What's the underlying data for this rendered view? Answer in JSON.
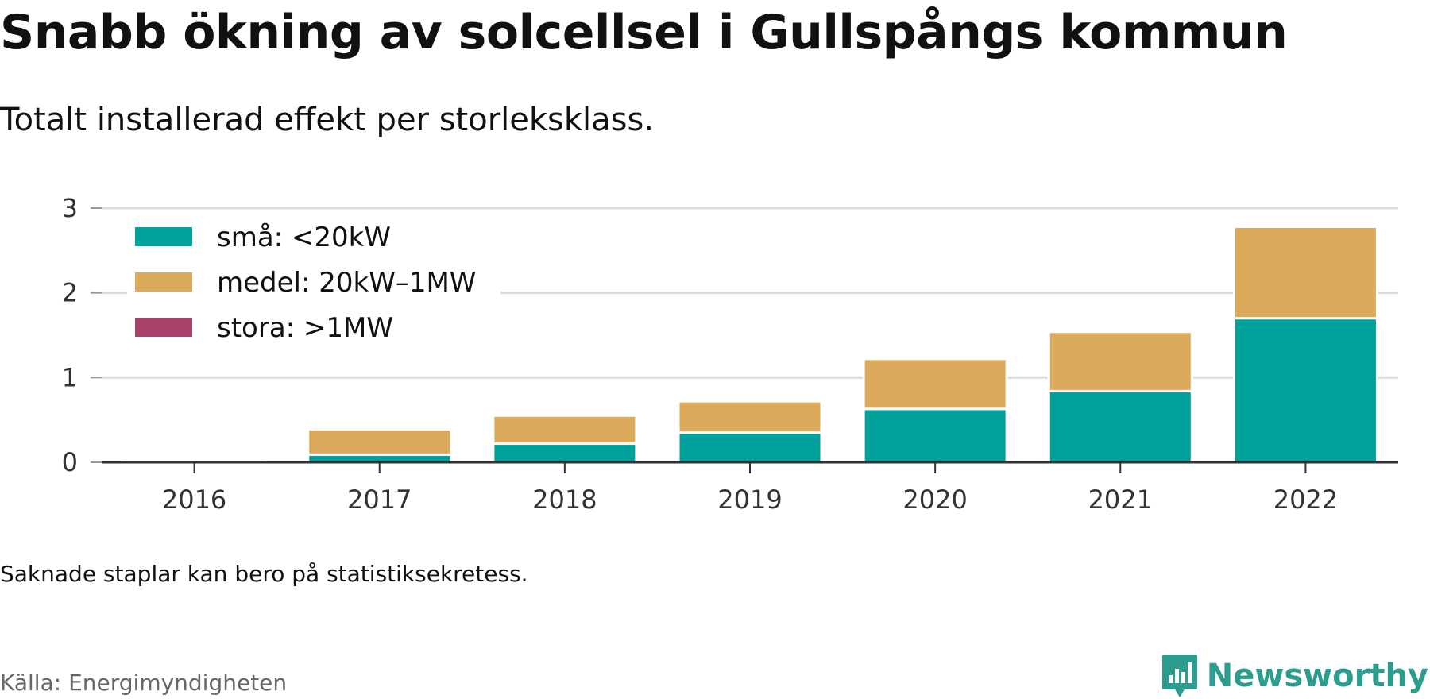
{
  "title": "Snabb ökning av solcellsel i Gullspångs kommun",
  "subtitle": "Totalt installerad effekt per storleksklass.",
  "note": "Saknade staplar kan bero på statistiksekretess.",
  "source": "Källa: Energimyndigheten",
  "brand": {
    "name": "Newsworthy",
    "icon": "newsworthy-logo-icon",
    "color": "#2c9c8f"
  },
  "chart_data": {
    "type": "bar",
    "stacked": true,
    "categories": [
      "2016",
      "2017",
      "2018",
      "2019",
      "2020",
      "2021",
      "2022"
    ],
    "series": [
      {
        "name": "små: <20kW",
        "color": "#00a19a",
        "values": [
          0.0,
          0.09,
          0.22,
          0.35,
          0.63,
          0.84,
          1.7
        ]
      },
      {
        "name": "medel: 20kW–1MW",
        "color": "#dbab5b",
        "values": [
          0.03,
          0.3,
          0.33,
          0.37,
          0.59,
          0.7,
          1.08
        ]
      },
      {
        "name": "stora: >1MW",
        "color": "#a8446b",
        "values": [
          0,
          0,
          0,
          0,
          0,
          0,
          0
        ]
      }
    ],
    "yticks": [
      0,
      1,
      2,
      3
    ],
    "ylim": [
      0,
      3
    ],
    "grid": true,
    "legend": "top-left"
  }
}
